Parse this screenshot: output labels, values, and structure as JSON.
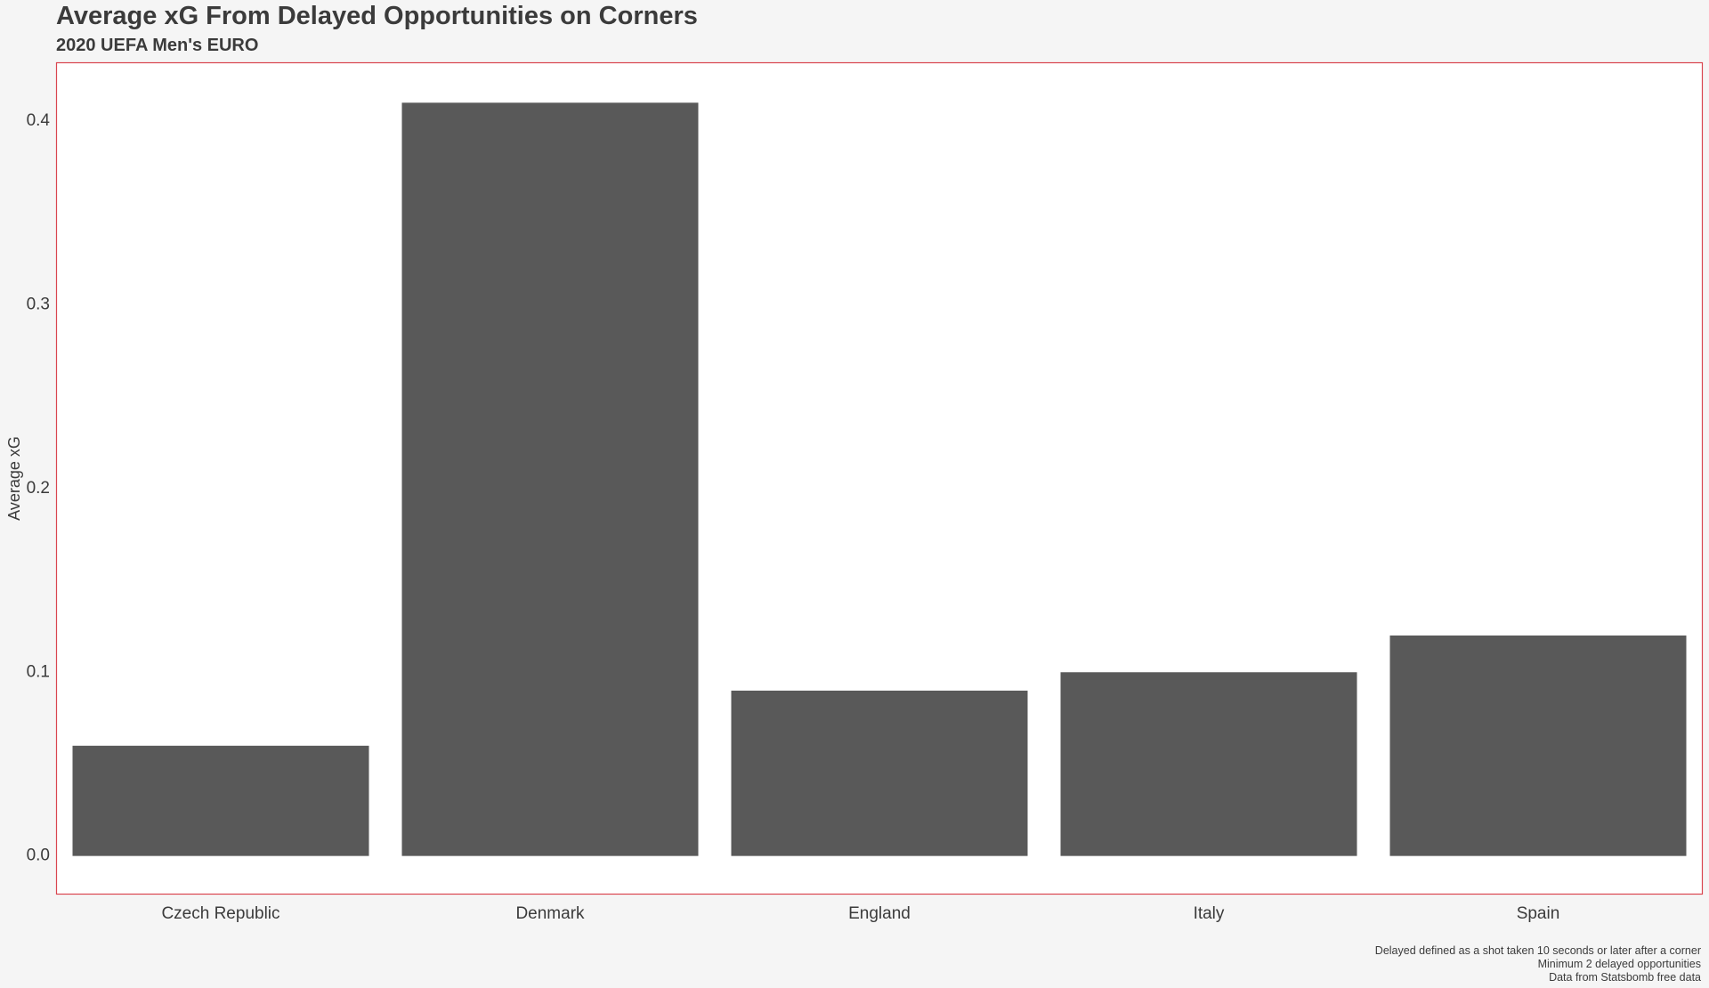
{
  "header": {
    "title": "Average xG From Delayed Opportunities on Corners",
    "subtitle": "2020 UEFA Men's EURO"
  },
  "caption": {
    "lines": [
      "Delayed defined as a shot taken 10 seconds or later after a corner",
      "Minimum 2 delayed opportunities",
      "Data from Statsbomb free data"
    ]
  },
  "colors": {
    "bar": "#595959",
    "panel_background": "#ffffff",
    "panel_border": "#d9454f",
    "page_background": "#f5f5f5",
    "text": "#3b3b3b"
  },
  "chart_data": {
    "type": "bar",
    "title": "Average xG From Delayed Opportunities on Corners",
    "subtitle": "2020 UEFA Men's EURO",
    "xlabel": "",
    "ylabel": "Average xG",
    "categories": [
      "Czech Republic",
      "Denmark",
      "England",
      "Italy",
      "Spain"
    ],
    "values": [
      0.06,
      0.41,
      0.09,
      0.1,
      0.12
    ],
    "ylim": [
      -0.021,
      0.432
    ],
    "yticks": [
      0.0,
      0.1,
      0.2,
      0.3,
      0.4
    ],
    "ytick_labels": [
      "0.0",
      "0.1",
      "0.2",
      "0.3",
      "0.4"
    ],
    "grid": false,
    "legend": "none"
  }
}
